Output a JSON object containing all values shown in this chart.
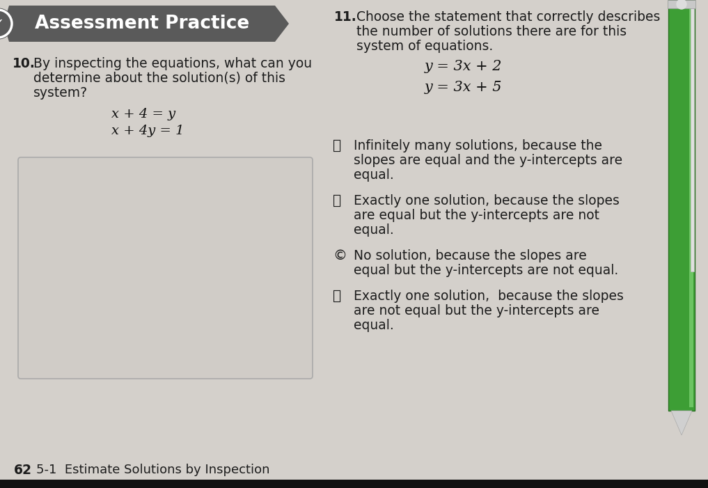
{
  "page_bg": "#d4d0cb",
  "header_bg": "#5a5a5a",
  "header_text": "Assessment Practice",
  "header_text_color": "#ffffff",
  "q10_number": "10.",
  "q10_text_line1": "By inspecting the equations, what can you",
  "q10_text_line2": "determine about the solution(s) of this",
  "q10_text_line3": "system?",
  "q10_eq1": "x + 4 = y",
  "q10_eq2": "x + 4y = 1",
  "q11_number": "11.",
  "q11_text_line1": "Choose the statement that correctly describes",
  "q11_text_line2": "the number of solutions there are for this",
  "q11_text_line3": "system of equations.",
  "q11_eq1": "y = 3x + 2",
  "q11_eq2": "y = 3x + 5",
  "optA_label": "Ⓐ",
  "optA_text_line1": "Infinitely many solutions, because the",
  "optA_text_line2": "slopes are equal and the y-intercepts are",
  "optA_text_line3": "equal.",
  "optB_label": "Ⓑ",
  "optB_text_line1": "Exactly one solution, because the slopes",
  "optB_text_line2": "are equal but the y-intercepts are not",
  "optB_text_line3": "equal.",
  "optC_label": "©",
  "optC_text_line1": "No solution, because the slopes are",
  "optC_text_line2": "equal but the y-intercepts are not equal.",
  "optD_label": "ⓓ",
  "optD_text_line1": "Exactly one solution,  because the slopes",
  "optD_text_line2": "are not equal but the y-intercepts are",
  "optD_text_line3": "equal.",
  "footer_page": "62",
  "footer_text": "5-1  Estimate Solutions by Inspection",
  "text_color": "#1c1c1c",
  "eq_color": "#111111",
  "box_edge": "#aaaaaa",
  "box_face": "#d0ccC7",
  "pen_green": "#3d9e35",
  "pen_green_dark": "#2a7022",
  "pen_green_light": "#6cc462",
  "pen_clip": "#e0e0e0",
  "pen_tip": "#d0d0d0"
}
